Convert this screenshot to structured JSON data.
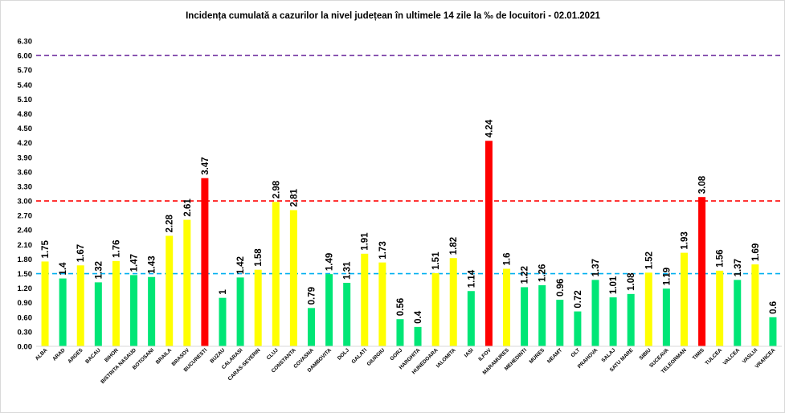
{
  "chart_data": {
    "type": "bar",
    "title": "Incidența cumulată a cazurilor la nivel județean în ultimele 14 zile la ‰ de locuitori - 02.01.2021",
    "xlabel": "",
    "ylabel": "",
    "ylim": [
      0,
      6.3
    ],
    "yticks": [
      "0.00",
      "0.30",
      "0.60",
      "0.90",
      "1.20",
      "1.50",
      "1.80",
      "2.10",
      "2.40",
      "2.70",
      "3.00",
      "3.30",
      "3.60",
      "3.90",
      "4.20",
      "4.50",
      "4.80",
      "5.10",
      "5.40",
      "5.70",
      "6.00",
      "6.30"
    ],
    "grid": false,
    "legend": "none",
    "categories": [
      "ALBA",
      "ARAD",
      "ARGES",
      "BACAU",
      "BIHOR",
      "BISTRITA NASAUD",
      "BOTOSANI",
      "BRAILA",
      "BRASOV",
      "BUCURESTI",
      "BUZAU",
      "CALARASI",
      "CARAS-SEVERIN",
      "CLUJ",
      "CONSTANTA",
      "COVASNA",
      "DAMBOVITA",
      "DOLJ",
      "GALATI",
      "GIURGIU",
      "GORJ",
      "HARGHITA",
      "HUNEDOARA",
      "IALOMITA",
      "IASI",
      "ILFOV",
      "MARAMURES",
      "MEHEDINTI",
      "MURES",
      "NEAMT",
      "OLT",
      "PRAHOVA",
      "SALAJ",
      "SATU MARE",
      "SIBIU",
      "SUCEAVA",
      "TELEORMAN",
      "TIMIS",
      "TULCEA",
      "VALCEA",
      "VASLUI",
      "VRANCEA"
    ],
    "values": [
      1.75,
      1.4,
      1.67,
      1.32,
      1.76,
      1.47,
      1.43,
      2.28,
      2.61,
      3.47,
      1,
      1.42,
      1.58,
      2.98,
      2.81,
      0.79,
      1.49,
      1.31,
      1.91,
      1.73,
      0.56,
      0.4,
      1.51,
      1.82,
      1.14,
      4.24,
      1.6,
      1.22,
      1.26,
      0.96,
      0.72,
      1.37,
      1.01,
      1.08,
      1.52,
      1.19,
      1.93,
      3.08,
      1.56,
      1.37,
      1.69,
      0.6
    ],
    "data_labels": [
      "1.75",
      "1.4",
      "1.67",
      "1.32",
      "1.76",
      "1.47",
      "1.43",
      "2.28",
      "2.61",
      "3.47",
      "1",
      "1.42",
      "1.58",
      "2.98",
      "2.81",
      "0.79",
      "1.49",
      "1.31",
      "1.91",
      "1.73",
      "0.56",
      "0.4",
      "1.51",
      "1.82",
      "1.14",
      "4.24",
      "1.6",
      "1.22",
      "1.26",
      "0.96",
      "0.72",
      "1.37",
      "1.01",
      "1.08",
      "1.52",
      "1.19",
      "1.93",
      "3.08",
      "1.56",
      "1.37",
      "1.69",
      "0.6"
    ],
    "thresholds": [
      {
        "value": 6.0,
        "color": "#7030a0",
        "style": "dashed"
      },
      {
        "value": 3.0,
        "color": "#ff0000",
        "style": "dashed"
      },
      {
        "value": 1.5,
        "color": "#00b0f0",
        "style": "dashed"
      }
    ],
    "colors": {
      "green": "#00e676",
      "yellow": "#ffff00",
      "red": "#ff0000"
    },
    "color_rule": {
      "green_below": 1.5,
      "red_from": 3.0
    }
  }
}
